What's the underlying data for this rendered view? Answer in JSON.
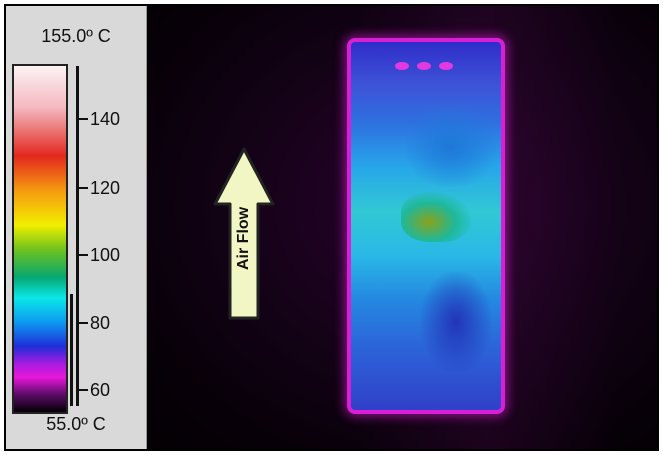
{
  "legend": {
    "max_label": "155.0º C",
    "min_label": "55.0º C",
    "ticks": [
      "140",
      "120",
      "100",
      "80",
      "60"
    ],
    "colors": [
      "#fbf3f3",
      "#e2281e",
      "#f59a10",
      "#f2ee00",
      "#6fc21e",
      "#0ae7e7",
      "#1f2fd9",
      "#e817d9",
      "#050005"
    ]
  },
  "arrow": {
    "label": "Air Flow",
    "icon": "up-arrow-icon",
    "fill_color": "#f2f5c4"
  }
}
